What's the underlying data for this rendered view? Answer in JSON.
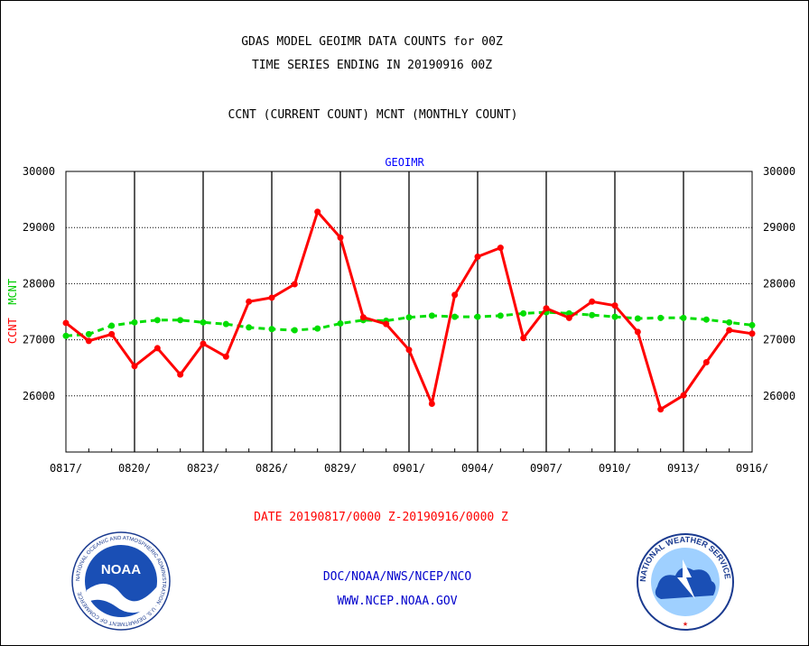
{
  "header": {
    "title_line1": "GDAS MODEL GEOIMR DATA COUNTS for 00Z",
    "title_line2": "TIME SERIES ENDING IN 20190916 00Z",
    "subtitle": "CCNT (CURRENT COUNT) MCNT (MONTHLY COUNT)"
  },
  "footer": {
    "date_range": "DATE 20190817/0000 Z-20190916/0000 Z",
    "credit_line1": "DOC/NOAA/NWS/NCEP/NCO",
    "credit_line2": "WWW.NCEP.NOAA.GOV"
  },
  "logos": {
    "left": "NOAA",
    "left_ring": "NATIONAL OCEANIC AND ATMOSPHERIC ADMINISTRATION · U.S. DEPARTMENT OF COMMERCE",
    "right_ring": "NATIONAL WEATHER SERVICE"
  },
  "chart_data": {
    "type": "line",
    "title": "GEOIMR",
    "ylabel_parts": [
      "CCNT",
      "MCNT"
    ],
    "ylim": [
      25000,
      30000
    ],
    "yticks": [
      26000,
      27000,
      28000,
      29000,
      30000
    ],
    "ytick_labels": [
      "26000",
      "27000",
      "28000",
      "29000",
      "30000"
    ],
    "xtick_labels": [
      "0817/",
      "0820/",
      "0823/",
      "0826/",
      "0829/",
      "0901/",
      "0904/",
      "0907/",
      "0910/",
      "0913/",
      "0916/"
    ],
    "x": [
      "0817",
      "0818",
      "0819",
      "0820",
      "0821",
      "0822",
      "0823",
      "0824",
      "0825",
      "0826",
      "0827",
      "0828",
      "0829",
      "0830",
      "0831",
      "0901",
      "0902",
      "0903",
      "0904",
      "0905",
      "0906",
      "0907",
      "0908",
      "0909",
      "0910",
      "0911",
      "0912",
      "0913",
      "0914",
      "0915",
      "0916"
    ],
    "grid": true,
    "series": [
      {
        "name": "CCNT",
        "color": "#ff0000",
        "style": "solid",
        "values": [
          27300,
          26980,
          27100,
          26530,
          26850,
          26380,
          26930,
          26700,
          27680,
          27750,
          27990,
          29280,
          28820,
          27400,
          27280,
          26820,
          25860,
          27800,
          28480,
          28640,
          27030,
          27560,
          27390,
          27680,
          27610,
          27140,
          25760,
          26010,
          26600,
          27170,
          27110
        ]
      },
      {
        "name": "MCNT",
        "color": "#00dd00",
        "style": "dashed",
        "values": [
          27070,
          27100,
          27250,
          27310,
          27350,
          27350,
          27310,
          27280,
          27220,
          27190,
          27170,
          27200,
          27290,
          27350,
          27340,
          27400,
          27430,
          27410,
          27410,
          27430,
          27470,
          27490,
          27470,
          27440,
          27410,
          27380,
          27390,
          27390,
          27360,
          27310,
          27260
        ]
      }
    ]
  }
}
